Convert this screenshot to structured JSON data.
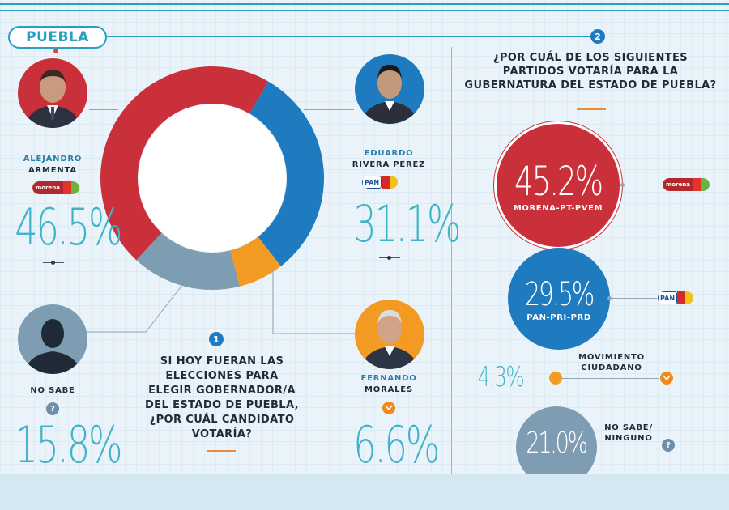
{
  "header": {
    "state": "PUEBLA"
  },
  "q1": {
    "number": "1",
    "text": "SI HOY FUERAN LAS ELECCIONES PARA ELEGIR GOBERNADOR/A DEL ESTADO DE PUEBLA, ¿POR CUÁL CANDIDATO VOTARÍA?"
  },
  "q2": {
    "number": "2",
    "text": "¿POR CUÁL DE LOS SIGUIENTES PARTIDOS VOTARÍA PARA LA GUBERNATURA DEL ESTADO DE PUEBLA?"
  },
  "candidates": {
    "armenta": {
      "first": "ALEJANDRO",
      "last": "ARMENTA",
      "pct": "46.5%"
    },
    "rivera": {
      "first": "EDUARDO",
      "last": "RIVERA PEREZ",
      "pct": "31.1%"
    },
    "morales": {
      "first": "FERNANDO",
      "last": "MORALES",
      "pct": "6.6%"
    },
    "nosabe": {
      "label": "NO SABE",
      "pct": "15.8%"
    }
  },
  "parties": {
    "morena": {
      "pct": "45.2%",
      "label": "MORENA-PT-PVEM"
    },
    "pan": {
      "pct": "29.5%",
      "label": "PAN-PRI-PRD"
    },
    "mc": {
      "pct": "4.3%",
      "label": "MOVIMIENTO CIUDADANO"
    },
    "ninguno": {
      "pct": "21.0%",
      "label": "NO SABE/ NINGUNO"
    }
  },
  "logos": {
    "morena": "morena",
    "pan": "PAN"
  },
  "colors": {
    "red": "#c9303a",
    "blue": "#1f7bbf",
    "gray": "#7f9db2",
    "orange": "#f29a21",
    "teal": "#3fb3c9"
  },
  "chart_data": [
    {
      "type": "pie",
      "title": "",
      "categories": [
        "ALEJANDRO ARMENTA",
        "EDUARDO RIVERA PEREZ",
        "FERNANDO MORALES",
        "NO SABE"
      ],
      "values": [
        46.5,
        31.1,
        6.6,
        15.8
      ],
      "colors": [
        "#c9303a",
        "#1f7bbf",
        "#f29a21",
        "#7f9db2"
      ],
      "donut": true
    },
    {
      "type": "bar",
      "title": "",
      "categories": [
        "MORENA-PT-PVEM",
        "PAN-PRI-PRD",
        "MOVIMIENTO CIUDADANO",
        "NO SABE/ NINGUNO"
      ],
      "values": [
        45.2,
        29.5,
        4.3,
        21.0
      ],
      "colors": [
        "#c9303a",
        "#1f7bbf",
        "#f29a21",
        "#7f9db2"
      ]
    }
  ]
}
